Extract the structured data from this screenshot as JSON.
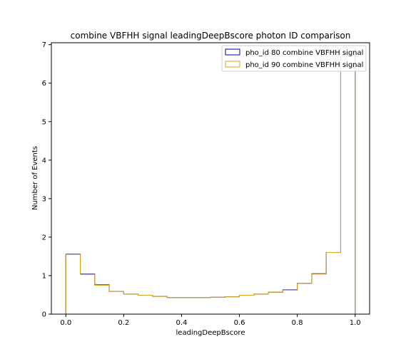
{
  "chart_data": {
    "type": "step-histogram",
    "title": "combine VBFHH signal leadingDeepBscore photon ID comparison",
    "xlabel": "leadingDeepBscore",
    "ylabel": "Number of Events",
    "xlim": [
      -0.05,
      1.05
    ],
    "ylim": [
      0,
      7.05
    ],
    "xticks": [
      0.0,
      0.2,
      0.4,
      0.6,
      0.8,
      1.0
    ],
    "xtick_labels": [
      "0.0",
      "0.2",
      "0.4",
      "0.6",
      "0.8",
      "1.0"
    ],
    "yticks": [
      0,
      1,
      2,
      3,
      4,
      5,
      6,
      7
    ],
    "ytick_labels": [
      "0",
      "1",
      "2",
      "3",
      "4",
      "5",
      "6",
      "7"
    ],
    "legend_position": "top-right",
    "bin_edges": [
      0.0,
      0.05,
      0.1,
      0.15,
      0.2,
      0.25,
      0.3,
      0.35,
      0.4,
      0.45,
      0.5,
      0.55,
      0.6,
      0.65,
      0.7,
      0.75,
      0.8,
      0.85,
      0.9,
      0.95,
      1.0
    ],
    "series": [
      {
        "name": "pho_id 80 combine VBFHH signal",
        "color": "#00008b",
        "values": [
          1.56,
          1.04,
          0.76,
          0.59,
          0.52,
          0.49,
          0.46,
          0.43,
          0.43,
          0.43,
          0.44,
          0.45,
          0.49,
          0.52,
          0.57,
          0.63,
          0.8,
          1.05,
          1.6,
          6.92
        ]
      },
      {
        "name": "pho_id 90 combine VBFHH signal",
        "color": "#daa520",
        "values": [
          1.55,
          1.03,
          0.75,
          0.59,
          0.52,
          0.49,
          0.46,
          0.43,
          0.43,
          0.43,
          0.44,
          0.45,
          0.49,
          0.52,
          0.57,
          0.62,
          0.8,
          1.04,
          1.6,
          6.92
        ]
      }
    ]
  }
}
